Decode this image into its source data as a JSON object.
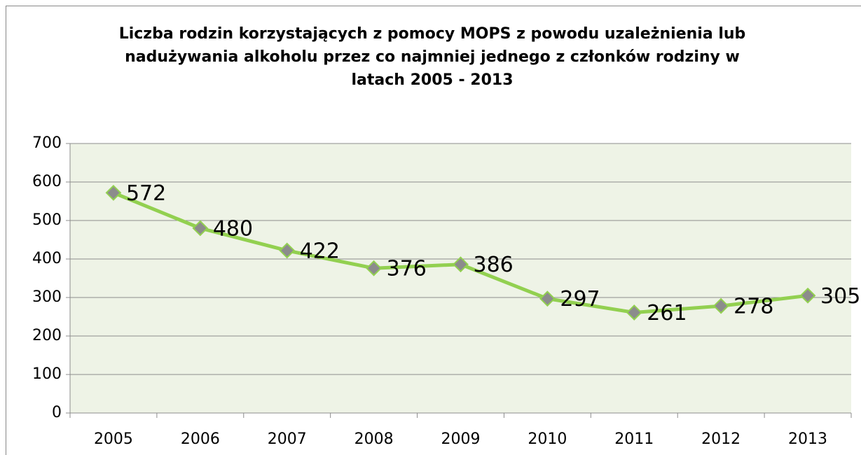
{
  "chart_data": {
    "type": "line",
    "title": "Liczba rodzin korzystających z pomocy MOPS z powodu uzależnienia lub nadużywania alkoholu przez co najmniej jednego z członków rodziny w latach 2005 - 2013",
    "categories": [
      "2005",
      "2006",
      "2007",
      "2008",
      "2009",
      "2010",
      "2011",
      "2012",
      "2013"
    ],
    "values": [
      572,
      480,
      422,
      376,
      386,
      297,
      261,
      278,
      305
    ],
    "color": "#92d050",
    "marker_color": "#8c8c8c",
    "ylim": [
      0,
      700
    ],
    "yticks": [
      0,
      100,
      200,
      300,
      400,
      500,
      600,
      700
    ],
    "grid": true
  }
}
